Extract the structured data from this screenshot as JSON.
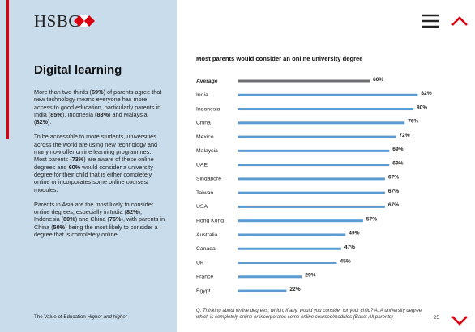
{
  "header": {
    "logo": "HSBC"
  },
  "sidebar": {
    "title": "Digital learning",
    "paragraphs": [
      [
        "More than two-thirds (",
        "69%",
        ") of parents agree that new technology means everyone has more access to good education, particularly parents in India (",
        "85%",
        "), Indonesia (",
        "83%",
        ") and Malaysia (",
        "82%",
        ")."
      ],
      [
        "To be accessible to more students, universities across the world are using new technology and many now offer online learning programmes. Most parents (",
        "73%",
        ") are aware of these online degrees and ",
        "60%",
        " would consider a university degree for their child that is either completely online or incorporates some online courses/ modules."
      ],
      [
        "Parents in Asia are the most likely to consider online degrees, especially in India (",
        "82%",
        "), Indonesia (",
        "80%",
        ") and China (",
        "76%",
        "), with parents in China (",
        "50%",
        ") being the most likely to consider a degree that is completely online."
      ]
    ]
  },
  "footer": {
    "source": [
      "The Value of Education ",
      "Higher and higher"
    ],
    "page": "25"
  },
  "chart_data": {
    "type": "bar",
    "orientation": "horizontal",
    "title": "Most parents would consider an online university degree",
    "categories": [
      "Average",
      "India",
      "Indonesia",
      "China",
      "Mexico",
      "Malaysia",
      "UAE",
      "Singapore",
      "Taiwan",
      "USA",
      "Hong Kong",
      "Australia",
      "Canada",
      "UK",
      "France",
      "Egypt"
    ],
    "values": [
      60,
      82,
      80,
      76,
      72,
      69,
      69,
      67,
      67,
      67,
      57,
      49,
      47,
      45,
      29,
      22
    ],
    "value_labels": [
      "60%",
      "82%",
      "80%",
      "76%",
      "72%",
      "69%",
      "69%",
      "67%",
      "67%",
      "67%",
      "57%",
      "49%",
      "47%",
      "45%",
      "29%",
      "22%"
    ],
    "colors": [
      "#6d6e70",
      "#5b9bd1",
      "#5b9bd1",
      "#5b9bd1",
      "#5b9bd1",
      "#5b9bd1",
      "#5b9bd1",
      "#5b9bd1",
      "#5b9bd1",
      "#5b9bd1",
      "#5b9bd1",
      "#5b9bd1",
      "#5b9bd1",
      "#5b9bd1",
      "#5b9bd1",
      "#5b9bd1"
    ],
    "note": "Q. Thinking about online degrees, which, if any, would you consider for your child? A. A university degree which is completely online or incorporates some online courses/modules (Base: All parents)"
  }
}
